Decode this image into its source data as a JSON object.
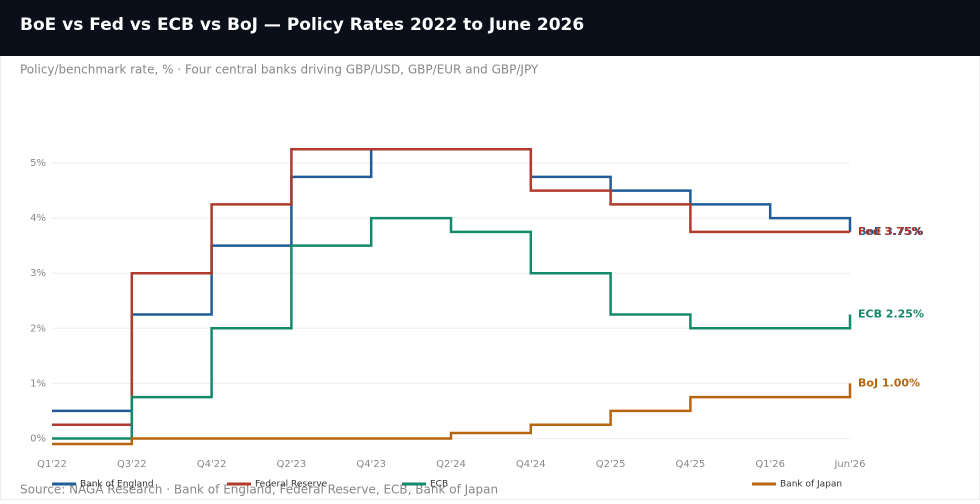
{
  "chart_data": {
    "type": "step-line",
    "title": "BoE vs Fed vs ECB vs BoJ — Policy Rates 2022 to June 2026",
    "subtitle": "Policy/benchmark rate, % · Four central banks driving GBP/USD, GBP/EUR and GBP/JPY",
    "source": "Source: NAGA Research · Bank of England, Federal Reserve, ECB, Bank of Japan",
    "categories": [
      "Q1'22",
      "Q3'22",
      "Q4'22",
      "Q2'23",
      "Q4'23",
      "Q2'24",
      "Q4'24",
      "Q2'25",
      "Q4'25",
      "Q1'26",
      "Jun'26"
    ],
    "series": [
      {
        "name": "Bank of England",
        "color": "#1f5c99",
        "end_label": "BoE 3.75%",
        "values": [
          0.5,
          2.25,
          3.5,
          4.75,
          5.25,
          5.25,
          4.75,
          4.5,
          4.25,
          4.0,
          3.75
        ]
      },
      {
        "name": "Federal Reserve",
        "color": "#b03a2e",
        "end_label": "Fed 3.75%",
        "values": [
          0.25,
          3.0,
          4.25,
          5.25,
          5.25,
          5.25,
          4.5,
          4.25,
          3.75,
          3.75,
          3.75
        ]
      },
      {
        "name": "ECB",
        "color": "#138a6a",
        "end_label": "ECB 2.25%",
        "values": [
          0,
          0.75,
          2.0,
          3.5,
          4.0,
          3.75,
          3.0,
          2.25,
          2.0,
          2.0,
          2.25
        ]
      },
      {
        "name": "Bank of Japan",
        "color": "#b8650f",
        "end_label": "BoJ 1.00%",
        "values": [
          -0.1,
          0,
          0,
          0,
          0,
          0.1,
          0.25,
          0.5,
          0.75,
          0.75,
          1.0
        ]
      }
    ],
    "ylim": [
      -0.3,
      5.6
    ],
    "yticks": [
      {
        "value": 0,
        "label": "0%"
      },
      {
        "value": 1,
        "label": "1%"
      },
      {
        "value": 2,
        "label": "2%"
      },
      {
        "value": 3,
        "label": "3%"
      },
      {
        "value": 4,
        "label": "4%"
      },
      {
        "value": 5,
        "label": "5%"
      }
    ],
    "grid": true
  }
}
